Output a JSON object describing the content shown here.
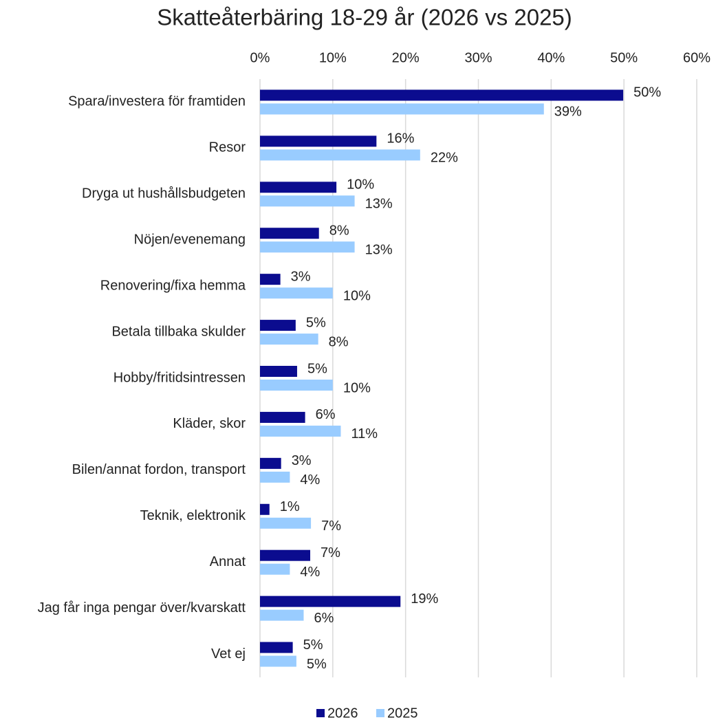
{
  "chart_data": {
    "type": "hbar",
    "title": "Skatteåterbäring 18-29 år (2026 vs 2025)",
    "categories": [
      "Spara/investera för framtiden",
      "Resor",
      "Dryga ut hushållsbudgeten",
      "Nöjen/evenemang",
      "Renovering/fixa hemma",
      "Betala tillbaka skulder",
      "Hobby/fritidsintressen",
      "Kläder, skor",
      "Bilen/annat fordon, transport",
      "Teknik, elektronik",
      "Annat",
      "Jag får inga pengar över/kvarskatt",
      "Vet ej"
    ],
    "series": [
      {
        "name": "2026",
        "color": "#0b0c8f",
        "values": [
          49.9,
          16.0,
          10.5,
          8.1,
          2.8,
          4.9,
          5.1,
          6.2,
          2.9,
          1.3,
          6.9,
          19.3,
          4.5
        ],
        "value_labels": [
          "50%",
          "16%",
          "10%",
          "8%",
          "3%",
          "5%",
          "5%",
          "6%",
          "3%",
          "1%",
          "7%",
          "19%",
          "5%"
        ]
      },
      {
        "name": "2025",
        "color": "#99ccff",
        "values": [
          39.0,
          22.0,
          13.0,
          13.0,
          10.0,
          8.0,
          10.0,
          11.1,
          4.1,
          7.0,
          4.1,
          6.0,
          5.0
        ],
        "value_labels": [
          "39%",
          "22%",
          "13%",
          "13%",
          "10%",
          "8%",
          "10%",
          "11%",
          "4%",
          "7%",
          "4%",
          "6%",
          "5%"
        ]
      }
    ],
    "xlim": [
      0,
      60
    ],
    "xticks": [
      {
        "value": 0,
        "label": "0%"
      },
      {
        "value": 10,
        "label": "10%"
      },
      {
        "value": 20,
        "label": "20%"
      },
      {
        "value": 30,
        "label": "30%"
      },
      {
        "value": 40,
        "label": "40%"
      },
      {
        "value": 50,
        "label": "50%"
      },
      {
        "value": 60,
        "label": "60%"
      }
    ],
    "grid": true,
    "legend": "bottom"
  }
}
